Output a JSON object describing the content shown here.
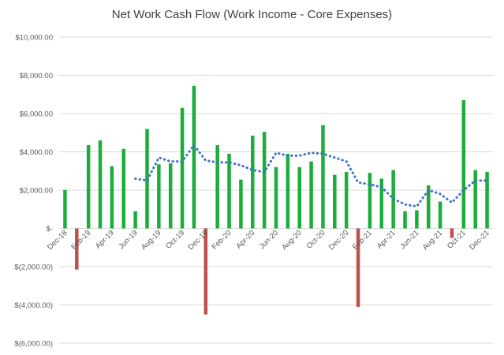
{
  "chart_data": {
    "type": "bar",
    "title": "Net Work Cash Flow (Work Income - Core Expenses)",
    "xlabel": "",
    "ylabel": "",
    "ylim": [
      -6000,
      10000
    ],
    "y_ticks": [
      10000,
      8000,
      6000,
      4000,
      2000,
      0,
      -2000,
      -4000,
      -6000
    ],
    "y_tick_labels": [
      "$10,000.00",
      "$8,000.00",
      "$6,000.00",
      "$4,000.00",
      "$2,000.00",
      "$-",
      "$(2,000.00)",
      "$(4,000.00)",
      "$(6,000.00)"
    ],
    "categories": [
      "Dec-18",
      "Jan-19",
      "Feb-19",
      "Mar-19",
      "Apr-19",
      "May-19",
      "Jun-19",
      "Jul-19",
      "Aug-19",
      "Sep-19",
      "Oct-19",
      "Nov-19",
      "Dec-19",
      "Jan-20",
      "Feb-20",
      "Mar-20",
      "Apr-20",
      "May-20",
      "Jun-20",
      "Jul-20",
      "Aug-20",
      "Sep-20",
      "Oct-20",
      "Nov-20",
      "Dec-20",
      "Jan-21",
      "Feb-21",
      "Mar-21",
      "Apr-21",
      "May-21",
      "Jun-21",
      "Jul-21",
      "Aug-21",
      "Sep-21",
      "Oct-21",
      "Nov-21",
      "Dec-21"
    ],
    "x_tick_labels": [
      "Dec-18",
      "",
      "Feb-19",
      "",
      "Apr-19",
      "",
      "Jun-19",
      "",
      "Aug-19",
      "",
      "Oct-19",
      "",
      "Dec-19",
      "",
      "Feb-20",
      "",
      "Apr-20",
      "",
      "Jun-20",
      "",
      "Aug-20",
      "",
      "Oct-20",
      "",
      "Dec-20",
      "",
      "Feb-21",
      "",
      "Apr-21",
      "",
      "Jun-21",
      "",
      "Aug-21",
      "",
      "Oct-21",
      "",
      "Dec-21"
    ],
    "series": [
      {
        "values": [
          2000,
          -2150,
          4350,
          4600,
          3250,
          4150,
          900,
          5200,
          3350,
          3400,
          6300,
          7450,
          -4500,
          4350,
          3900,
          2550,
          4850,
          5050,
          3200,
          3900,
          3200,
          3500,
          5400,
          2800,
          2950,
          -4100,
          2900,
          2600,
          3050,
          900,
          950,
          2250,
          1400,
          -500,
          6700,
          3050,
          2950
        ]
      },
      {
        "type": "moving-average",
        "style": "dotted",
        "values": [
          null,
          null,
          null,
          null,
          null,
          null,
          2600,
          2500,
          3700,
          3500,
          3500,
          4350,
          3550,
          3450,
          3450,
          3300,
          3050,
          2950,
          3950,
          3800,
          3800,
          3950,
          3900,
          3700,
          3500,
          2400,
          2300,
          2150,
          1550,
          1250,
          1150,
          2000,
          1800,
          1350,
          2000,
          2500,
          2500
        ]
      }
    ],
    "colors": {
      "positive": "#1aad3a",
      "negative": "#c0504d",
      "trend": "#4472c4",
      "grid": "#d9d9d9"
    }
  }
}
